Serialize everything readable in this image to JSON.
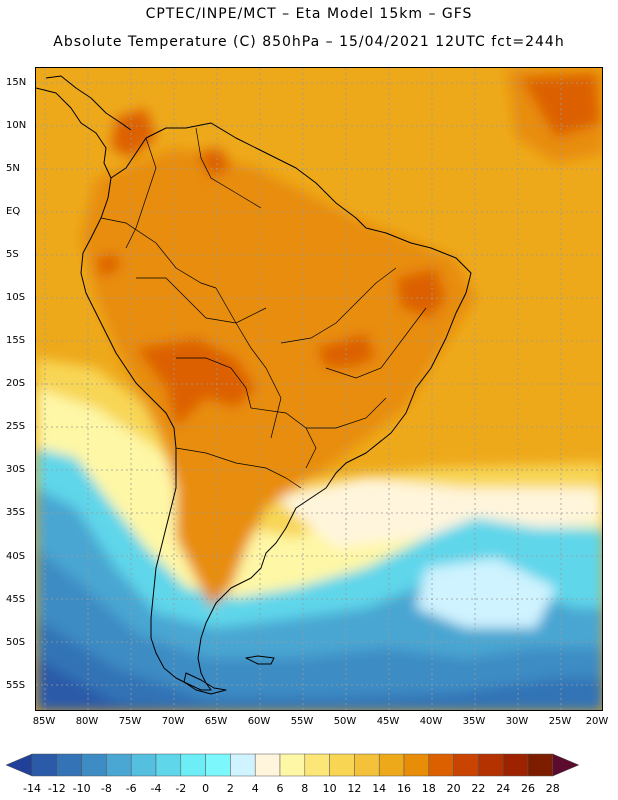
{
  "header": {
    "line1": "CPTEC/INPE/MCT –  Eta Model 15km – GFS",
    "line2": "Absolute Temperature (C) 850hPa – 15/04/2021 12UTC fct=244h"
  },
  "axes": {
    "lat_labels": [
      "15N",
      "10N",
      "5N",
      "EQ",
      "5S",
      "10S",
      "15S",
      "20S",
      "25S",
      "30S",
      "35S",
      "40S",
      "45S",
      "50S",
      "55S"
    ],
    "lon_labels": [
      "85W",
      "80W",
      "75W",
      "70W",
      "65W",
      "60W",
      "55W",
      "50W",
      "45W",
      "40W",
      "35W",
      "30W",
      "25W",
      "20W"
    ]
  },
  "colorbar": {
    "labels": [
      "-14",
      "-12",
      "-10",
      "-8",
      "-6",
      "-4",
      "-2",
      "0",
      "2",
      "4",
      "6",
      "8",
      "10",
      "12",
      "14",
      "16",
      "18",
      "20",
      "22",
      "24",
      "26",
      "28"
    ],
    "colors": [
      "#21409a",
      "#2a5aa8",
      "#3373b6",
      "#3d8cc4",
      "#4aa6d2",
      "#55bfe0",
      "#5fd6ea",
      "#6deef6",
      "#7cf8fd",
      "#cff3ff",
      "#fff5dc",
      "#fef7a6",
      "#fbe677",
      "#f8d654",
      "#f3c23a",
      "#eea91b",
      "#e88d08",
      "#dd6000",
      "#c94400",
      "#b43200",
      "#9c2200",
      "#7c1d00",
      "#5a0b2e"
    ]
  },
  "colors": {
    "ocean_warm": "#eea91b",
    "land_hot": "#dd6000",
    "cold": "#3373b6",
    "frame": "#000000"
  }
}
